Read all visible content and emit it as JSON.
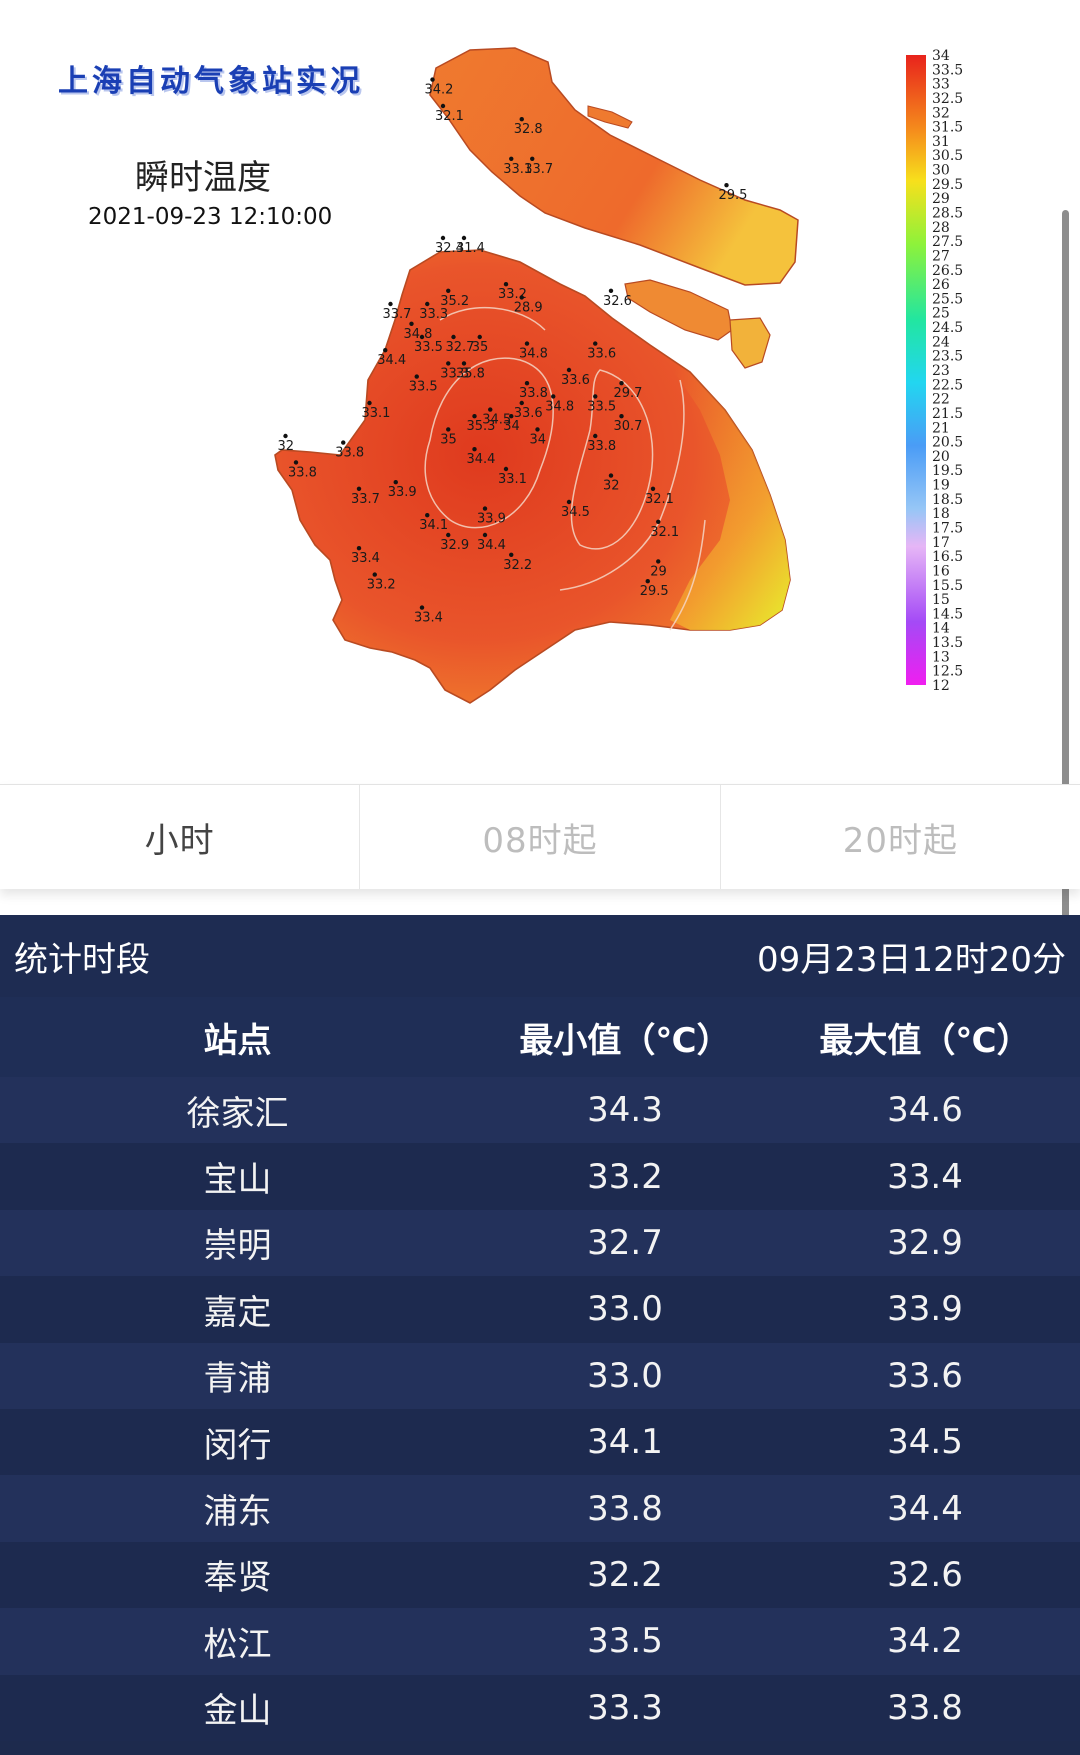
{
  "map": {
    "title": "上海自动气象站实况",
    "subtitle": "瞬时温度",
    "time": "2021-09-23 12:10:00",
    "legend_labels": [
      "34",
      "33.5",
      "33",
      "32.5",
      "32",
      "31.5",
      "31",
      "30.5",
      "30",
      "29.5",
      "29",
      "28.5",
      "28",
      "27.5",
      "27",
      "26.5",
      "26",
      "25.5",
      "25",
      "24.5",
      "24",
      "23.5",
      "23",
      "22.5",
      "22",
      "21.5",
      "21",
      "20.5",
      "20",
      "19.5",
      "19",
      "18.5",
      "18",
      "17.5",
      "17",
      "16.5",
      "16",
      "15.5",
      "15",
      "14.5",
      "14",
      "13.5",
      "13",
      "12.5",
      "12"
    ],
    "stations": [
      {
        "v": "34.2",
        "lon": 0.3,
        "lat": 0.94
      },
      {
        "v": "32.1",
        "lon": 0.32,
        "lat": 0.9
      },
      {
        "v": "32.8",
        "lon": 0.47,
        "lat": 0.88
      },
      {
        "v": "33.1",
        "lon": 0.45,
        "lat": 0.82
      },
      {
        "v": "33.7",
        "lon": 0.49,
        "lat": 0.82
      },
      {
        "v": "29.5",
        "lon": 0.86,
        "lat": 0.78
      },
      {
        "v": "32.4",
        "lon": 0.32,
        "lat": 0.7
      },
      {
        "v": "31.4",
        "lon": 0.36,
        "lat": 0.7
      },
      {
        "v": "35.2",
        "lon": 0.33,
        "lat": 0.62
      },
      {
        "v": "33.2",
        "lon": 0.44,
        "lat": 0.63
      },
      {
        "v": "28.9",
        "lon": 0.47,
        "lat": 0.61
      },
      {
        "v": "32.6",
        "lon": 0.64,
        "lat": 0.62
      },
      {
        "v": "33.7",
        "lon": 0.22,
        "lat": 0.6
      },
      {
        "v": "33.3",
        "lon": 0.29,
        "lat": 0.6
      },
      {
        "v": "34.8",
        "lon": 0.26,
        "lat": 0.57
      },
      {
        "v": "33.5",
        "lon": 0.28,
        "lat": 0.55
      },
      {
        "v": "32.7",
        "lon": 0.34,
        "lat": 0.55
      },
      {
        "v": "35",
        "lon": 0.39,
        "lat": 0.55
      },
      {
        "v": "34.4",
        "lon": 0.21,
        "lat": 0.53
      },
      {
        "v": "33.3",
        "lon": 0.33,
        "lat": 0.51
      },
      {
        "v": "35.8",
        "lon": 0.36,
        "lat": 0.51
      },
      {
        "v": "34.8",
        "lon": 0.48,
        "lat": 0.54
      },
      {
        "v": "33.6",
        "lon": 0.61,
        "lat": 0.54
      },
      {
        "v": "33.6",
        "lon": 0.56,
        "lat": 0.5
      },
      {
        "v": "33.5",
        "lon": 0.27,
        "lat": 0.49
      },
      {
        "v": "33.8",
        "lon": 0.48,
        "lat": 0.48
      },
      {
        "v": "34.8",
        "lon": 0.53,
        "lat": 0.46
      },
      {
        "v": "33.5",
        "lon": 0.61,
        "lat": 0.46
      },
      {
        "v": "29.7",
        "lon": 0.66,
        "lat": 0.48
      },
      {
        "v": "33.1",
        "lon": 0.18,
        "lat": 0.45
      },
      {
        "v": "33.6",
        "lon": 0.47,
        "lat": 0.45
      },
      {
        "v": "34.5",
        "lon": 0.41,
        "lat": 0.44
      },
      {
        "v": "34",
        "lon": 0.45,
        "lat": 0.43
      },
      {
        "v": "35.3",
        "lon": 0.38,
        "lat": 0.43
      },
      {
        "v": "30.7",
        "lon": 0.66,
        "lat": 0.43
      },
      {
        "v": "35",
        "lon": 0.33,
        "lat": 0.41
      },
      {
        "v": "34",
        "lon": 0.5,
        "lat": 0.41
      },
      {
        "v": "33.8",
        "lon": 0.61,
        "lat": 0.4
      },
      {
        "v": "32",
        "lon": 0.02,
        "lat": 0.4
      },
      {
        "v": "33.8",
        "lon": 0.13,
        "lat": 0.39
      },
      {
        "v": "34.4",
        "lon": 0.38,
        "lat": 0.38
      },
      {
        "v": "33.1",
        "lon": 0.44,
        "lat": 0.35
      },
      {
        "v": "32",
        "lon": 0.64,
        "lat": 0.34
      },
      {
        "v": "33.8",
        "lon": 0.04,
        "lat": 0.36
      },
      {
        "v": "33.7",
        "lon": 0.16,
        "lat": 0.32
      },
      {
        "v": "33.9",
        "lon": 0.23,
        "lat": 0.33
      },
      {
        "v": "32.1",
        "lon": 0.72,
        "lat": 0.32
      },
      {
        "v": "34.5",
        "lon": 0.56,
        "lat": 0.3
      },
      {
        "v": "33.9",
        "lon": 0.4,
        "lat": 0.29
      },
      {
        "v": "34.1",
        "lon": 0.29,
        "lat": 0.28
      },
      {
        "v": "32.1",
        "lon": 0.73,
        "lat": 0.27
      },
      {
        "v": "32.9",
        "lon": 0.33,
        "lat": 0.25
      },
      {
        "v": "34.4",
        "lon": 0.4,
        "lat": 0.25
      },
      {
        "v": "33.4",
        "lon": 0.16,
        "lat": 0.23
      },
      {
        "v": "32.2",
        "lon": 0.45,
        "lat": 0.22
      },
      {
        "v": "29",
        "lon": 0.73,
        "lat": 0.21
      },
      {
        "v": "29.5",
        "lon": 0.71,
        "lat": 0.18
      },
      {
        "v": "33.2",
        "lon": 0.19,
        "lat": 0.19
      },
      {
        "v": "33.4",
        "lon": 0.28,
        "lat": 0.14
      }
    ]
  },
  "tabs": [
    {
      "label": "小时"
    },
    {
      "label": "08时起"
    },
    {
      "label": "20时起"
    }
  ],
  "stats": {
    "period_label": "统计时段",
    "period_value": "09月23日12时20分",
    "headers": {
      "station": "站点",
      "min": "最小值（℃）",
      "max": "最大值（℃）"
    },
    "rows": [
      {
        "station": "徐家汇",
        "min": "34.3",
        "max": "34.6"
      },
      {
        "station": "宝山",
        "min": "33.2",
        "max": "33.4"
      },
      {
        "station": "崇明",
        "min": "32.7",
        "max": "32.9"
      },
      {
        "station": "嘉定",
        "min": "33.0",
        "max": "33.9"
      },
      {
        "station": "青浦",
        "min": "33.0",
        "max": "33.6"
      },
      {
        "station": "闵行",
        "min": "34.1",
        "max": "34.5"
      },
      {
        "station": "浦东",
        "min": "33.8",
        "max": "34.4"
      },
      {
        "station": "奉贤",
        "min": "32.2",
        "max": "32.6"
      },
      {
        "station": "松江",
        "min": "33.5",
        "max": "34.2"
      },
      {
        "station": "金山",
        "min": "33.3",
        "max": "33.8"
      }
    ]
  },
  "colors": {
    "accent": "#1d2a4d",
    "land": "#e8512c",
    "warm_core": "#e0381f",
    "cool_edge": "#f2b82e"
  }
}
